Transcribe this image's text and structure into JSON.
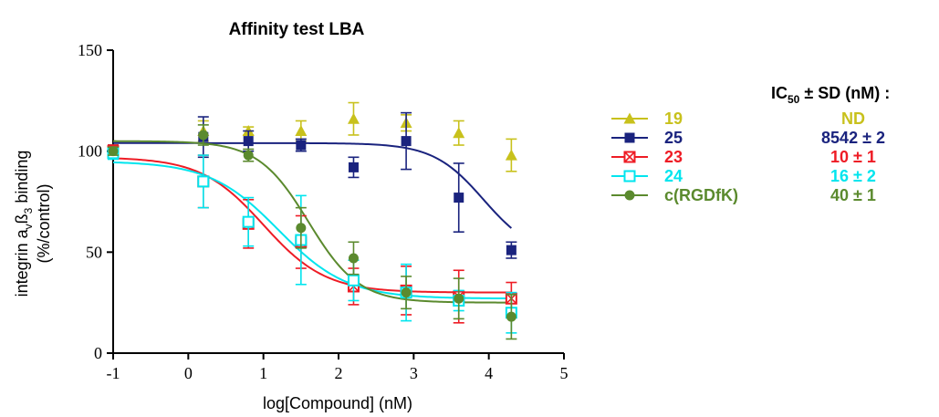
{
  "chart_data": {
    "type": "line",
    "title": "Affinity test LBA",
    "xlabel": "log[Compound] (nM)",
    "ylabel_prefix": "integrin a",
    "ylabel_sub1": "v",
    "ylabel_mid": "ß",
    "ylabel_sub2": "3",
    "ylabel_suffix": " binding",
    "ylabel_line2": "(%/control)",
    "xlim": [
      -1,
      5
    ],
    "ylim": [
      0,
      150
    ],
    "xticks": [
      -1,
      0,
      1,
      2,
      3,
      4,
      5
    ],
    "yticks": [
      0,
      50,
      100,
      150
    ],
    "ic50_header_prefix": "IC",
    "ic50_header_sub": "50",
    "ic50_header_suffix": " ± SD (nM) :",
    "series": [
      {
        "name": "19",
        "ic50": "ND",
        "color": "#C8C11C",
        "marker": "triangle",
        "x": [
          -1,
          0.2,
          0.8,
          1.5,
          2.2,
          2.9,
          3.6,
          4.3
        ],
        "y": [
          100,
          110,
          110,
          110,
          116,
          114,
          109,
          98
        ],
        "err": [
          3,
          5,
          2,
          5,
          8,
          4,
          6,
          8
        ],
        "curve": null
      },
      {
        "name": "25",
        "ic50": "8542 ±  2",
        "color": "#1A237E",
        "marker": "square",
        "x": [
          -1,
          0.2,
          0.8,
          1.5,
          2.2,
          2.9,
          3.6,
          4.3
        ],
        "y": [
          100,
          107,
          105,
          103,
          92,
          105,
          77,
          51
        ],
        "err": [
          3,
          10,
          5,
          3,
          5,
          14,
          17,
          4
        ],
        "curve": {
          "top": 104,
          "bottom": 48,
          "logic50": 3.93,
          "hill": 1.3
        }
      },
      {
        "name": "23",
        "ic50": "10 ± 1",
        "color": "#EE1C25",
        "marker": "square-x",
        "x": [
          -1,
          0.2,
          0.8,
          1.5,
          2.2,
          2.9,
          3.6,
          4.3
        ],
        "y": [
          100,
          85,
          64,
          55,
          33,
          31,
          28,
          27
        ],
        "err": [
          3,
          13,
          12,
          13,
          9,
          12,
          13,
          8
        ],
        "curve": {
          "top": 97,
          "bottom": 30,
          "logic50": 1.0,
          "hill": 1.05
        }
      },
      {
        "name": "24",
        "ic50": "16 ± 2",
        "color": "#00E5EE",
        "marker": "square-open",
        "x": [
          -1,
          0.2,
          0.8,
          1.5,
          2.2,
          2.9,
          3.6,
          4.3
        ],
        "y": [
          99,
          85,
          65,
          56,
          36,
          30,
          26,
          20
        ],
        "err": [
          3,
          13,
          12,
          22,
          10,
          14,
          5,
          10
        ],
        "curve": {
          "top": 95,
          "bottom": 27,
          "logic50": 1.2,
          "hill": 0.95
        }
      },
      {
        "name": "c(RGDfK)",
        "ic50": "40 ± 1",
        "color": "#5B8A2E",
        "marker": "circle",
        "x": [
          -1,
          0.2,
          0.8,
          1.5,
          2.2,
          2.9,
          3.6,
          4.3
        ],
        "y": [
          100,
          108,
          98,
          62,
          47,
          30,
          27,
          18
        ],
        "err": [
          2,
          5,
          3,
          10,
          8,
          8,
          10,
          11
        ],
        "curve": {
          "top": 105,
          "bottom": 25,
          "logic50": 1.6,
          "hill": 1.3
        }
      }
    ]
  }
}
